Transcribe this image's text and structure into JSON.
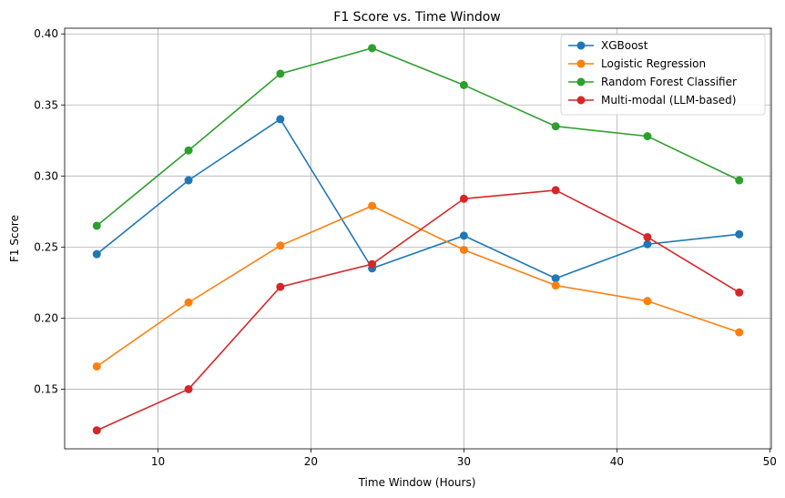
{
  "chart_data": {
    "type": "line",
    "title": "F1 Score vs. Time Window",
    "xlabel": "Time Window (Hours)",
    "ylabel": "F1 Score",
    "xlim": [
      3.9,
      50.1
    ],
    "ylim": [
      0.108,
      0.404
    ],
    "xticks": [
      10,
      20,
      30,
      40,
      50
    ],
    "xtick_labels": [
      "10",
      "20",
      "30",
      "40",
      "50"
    ],
    "yticks": [
      0.15,
      0.2,
      0.25,
      0.3,
      0.35,
      0.4
    ],
    "ytick_labels": [
      "0.15",
      "0.20",
      "0.25",
      "0.30",
      "0.35",
      "0.40"
    ],
    "grid": true,
    "legend_position": "top-right",
    "x": [
      6,
      12,
      18,
      24,
      30,
      36,
      42,
      48
    ],
    "series": [
      {
        "name": "XGBoost",
        "color": "#1f77b4",
        "values": [
          0.245,
          0.297,
          0.34,
          0.235,
          0.258,
          0.228,
          0.252,
          0.259
        ]
      },
      {
        "name": "Logistic Regression",
        "color": "#ff7f0e",
        "values": [
          0.166,
          0.211,
          0.251,
          0.279,
          0.248,
          0.223,
          0.212,
          0.19
        ]
      },
      {
        "name": "Random Forest Classifier",
        "color": "#2ca02c",
        "values": [
          0.265,
          0.318,
          0.372,
          0.39,
          0.364,
          0.335,
          0.328,
          0.297
        ]
      },
      {
        "name": "Multi-modal (LLM-based)",
        "color": "#d62728",
        "values": [
          0.121,
          0.15,
          0.222,
          0.238,
          0.284,
          0.29,
          0.257,
          0.218
        ]
      }
    ]
  }
}
